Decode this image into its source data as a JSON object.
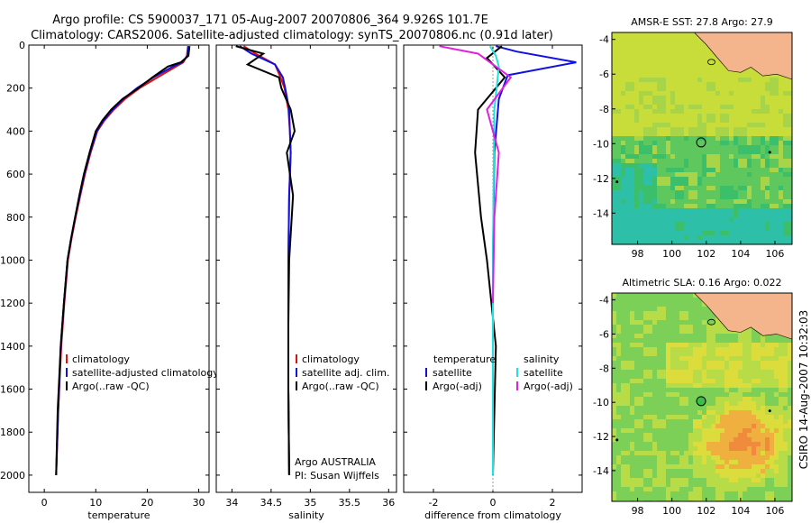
{
  "header": {
    "line1": "Argo profile: CS 5900037_171 05-Aug-2007 20070806_364 9.926S 101.7E",
    "line2": "Climatology: CARS2006. Satellite-adjusted climatology: synTS_20070806.nc (0.91d later)"
  },
  "sidebar_text": "CSIRO 14-Aug-2007 10:32:03",
  "colors": {
    "climatology": "#e01010",
    "satellite": "#1010e0",
    "argo": "#000000",
    "satellite_diff": "#20e0e0",
    "argo_diff": "#e020e0",
    "land": "#f4b48c"
  },
  "chart_data": [
    {
      "type": "line",
      "title": "",
      "xlabel": "temperature",
      "ylabel": "",
      "xlim": [
        -3,
        32
      ],
      "ylim": [
        2080,
        0
      ],
      "xticks": [
        0,
        10,
        20,
        30
      ],
      "yticks": [
        0,
        200,
        400,
        600,
        800,
        1000,
        1200,
        1400,
        1600,
        1800,
        2000
      ],
      "series": [
        {
          "name": "climatology",
          "color": "#e01010",
          "x": [
            27.9,
            27.7,
            27.0,
            25.6,
            22.0,
            18.5,
            15.7,
            13.5,
            11.7,
            10.3,
            9.0,
            7.9,
            7.0,
            6.1,
            5.3,
            4.6,
            3.9,
            3.3,
            2.7,
            2.3
          ],
          "y": [
            5,
            50,
            80,
            100,
            150,
            200,
            250,
            300,
            350,
            400,
            500,
            600,
            700,
            800,
            900,
            1000,
            1200,
            1400,
            1700,
            2000
          ]
        },
        {
          "name": "satellite-adjusted climatology",
          "color": "#1010e0",
          "x": [
            28.0,
            27.8,
            26.8,
            25.0,
            21.2,
            18.0,
            15.4,
            13.3,
            11.5,
            10.2,
            8.9,
            7.8,
            6.9,
            6.0,
            5.2,
            4.5,
            3.8,
            3.2,
            2.7,
            2.3
          ],
          "y": [
            5,
            50,
            80,
            100,
            150,
            200,
            250,
            300,
            350,
            400,
            500,
            600,
            700,
            800,
            900,
            1000,
            1200,
            1400,
            1700,
            2000
          ]
        },
        {
          "name": "Argo(..raw -QC)",
          "color": "#000000",
          "x": [
            28.2,
            28.0,
            26.5,
            24.0,
            21.0,
            18.3,
            15.2,
            13.0,
            11.3,
            10.0,
            8.8,
            7.7,
            6.8,
            6.0,
            5.2,
            4.5,
            3.8,
            3.2,
            2.6,
            2.3
          ],
          "y": [
            5,
            50,
            80,
            100,
            150,
            200,
            250,
            300,
            350,
            400,
            500,
            600,
            700,
            800,
            900,
            1000,
            1200,
            1400,
            1700,
            2000
          ]
        }
      ]
    },
    {
      "type": "line",
      "title": "",
      "xlabel": "salinity",
      "ylabel": "",
      "xlim": [
        33.8,
        36.1
      ],
      "ylim": [
        2080,
        0
      ],
      "xticks": [
        34,
        34.5,
        35,
        35.5,
        36
      ],
      "xticklabels": [
        "34",
        "34.5",
        "35",
        "35.5",
        "36"
      ],
      "series": [
        {
          "name": "climatology",
          "color": "#e01010",
          "x": [
            34.15,
            34.3,
            34.55,
            34.62,
            34.67,
            34.72,
            34.74,
            34.75,
            34.73,
            34.72,
            34.72,
            34.72,
            34.73
          ],
          "y": [
            5,
            40,
            90,
            150,
            200,
            300,
            400,
            500,
            700,
            1000,
            1300,
            1600,
            2000
          ]
        },
        {
          "name": "satellite adj. clim.",
          "color": "#1010e0",
          "x": [
            34.1,
            34.25,
            34.55,
            34.65,
            34.68,
            34.73,
            34.74,
            34.75,
            34.73,
            34.72,
            34.72,
            34.72,
            34.73
          ],
          "y": [
            5,
            40,
            90,
            150,
            200,
            300,
            400,
            500,
            700,
            1000,
            1300,
            1600,
            2000
          ]
        },
        {
          "name": "Argo(..raw -QC)",
          "color": "#000000",
          "x": [
            34.05,
            34.4,
            34.2,
            34.6,
            34.63,
            34.75,
            34.8,
            34.7,
            34.78,
            34.73,
            34.72,
            34.72,
            34.73
          ],
          "y": [
            5,
            40,
            90,
            150,
            200,
            300,
            400,
            500,
            700,
            1000,
            1300,
            1600,
            2000
          ]
        }
      ],
      "annotations": [
        "Argo AUSTRALIA",
        "PI: Susan Wijffels"
      ]
    },
    {
      "type": "line",
      "title": "",
      "xlabel": "difference from climatology",
      "ylabel": "",
      "xlim": [
        -3,
        3
      ],
      "ylim": [
        2080,
        0
      ],
      "xticks": [
        -2,
        0,
        2
      ],
      "legend_groups": [
        "temperature",
        "salinity"
      ],
      "series": [
        {
          "name": "temperature satellite",
          "color": "#1010e0",
          "x": [
            0.1,
            0.8,
            2.8,
            0.5,
            0.2,
            0.05,
            0.0,
            0.0
          ],
          "y": [
            5,
            30,
            80,
            140,
            250,
            500,
            1000,
            2000
          ]
        },
        {
          "name": "temperature Argo(-adj)",
          "color": "#000000",
          "x": [
            0.3,
            -0.2,
            0.4,
            -0.5,
            -0.6,
            -0.4,
            -0.2,
            0.1,
            0.0
          ],
          "y": [
            5,
            60,
            150,
            300,
            500,
            800,
            1000,
            1400,
            2000
          ]
        },
        {
          "name": "salinity satellite",
          "color": "#20e0e0",
          "x": [
            -0.1,
            0.1,
            0.2,
            0.05,
            0.0,
            0.0
          ],
          "y": [
            5,
            50,
            100,
            300,
            1000,
            2000
          ]
        },
        {
          "name": "salinity Argo(-adj)",
          "color": "#e020e0",
          "x": [
            -1.8,
            -0.5,
            0.6,
            -0.2,
            0.2,
            0.05,
            0.0
          ],
          "y": [
            5,
            40,
            150,
            300,
            500,
            800,
            1200
          ]
        }
      ]
    },
    {
      "type": "heatmap",
      "title": "AMSR-E SST: 27.8 Argo: 27.9",
      "xlim": [
        96.5,
        107
      ],
      "ylim": [
        -15.8,
        -3.6
      ],
      "xticks": [
        98,
        100,
        102,
        104,
        106
      ],
      "yticks": [
        -4,
        -6,
        -8,
        -10,
        -12,
        -14
      ],
      "float_position": [
        101.7,
        -9.93
      ]
    },
    {
      "type": "heatmap",
      "title": "Altimetric SLA: 0.16 Argo: 0.022",
      "xlim": [
        96.5,
        107
      ],
      "ylim": [
        -15.8,
        -3.6
      ],
      "xticks": [
        98,
        100,
        102,
        104,
        106
      ],
      "yticks": [
        -4,
        -6,
        -8,
        -10,
        -12,
        -14
      ],
      "float_position": [
        101.7,
        -9.93
      ]
    }
  ]
}
